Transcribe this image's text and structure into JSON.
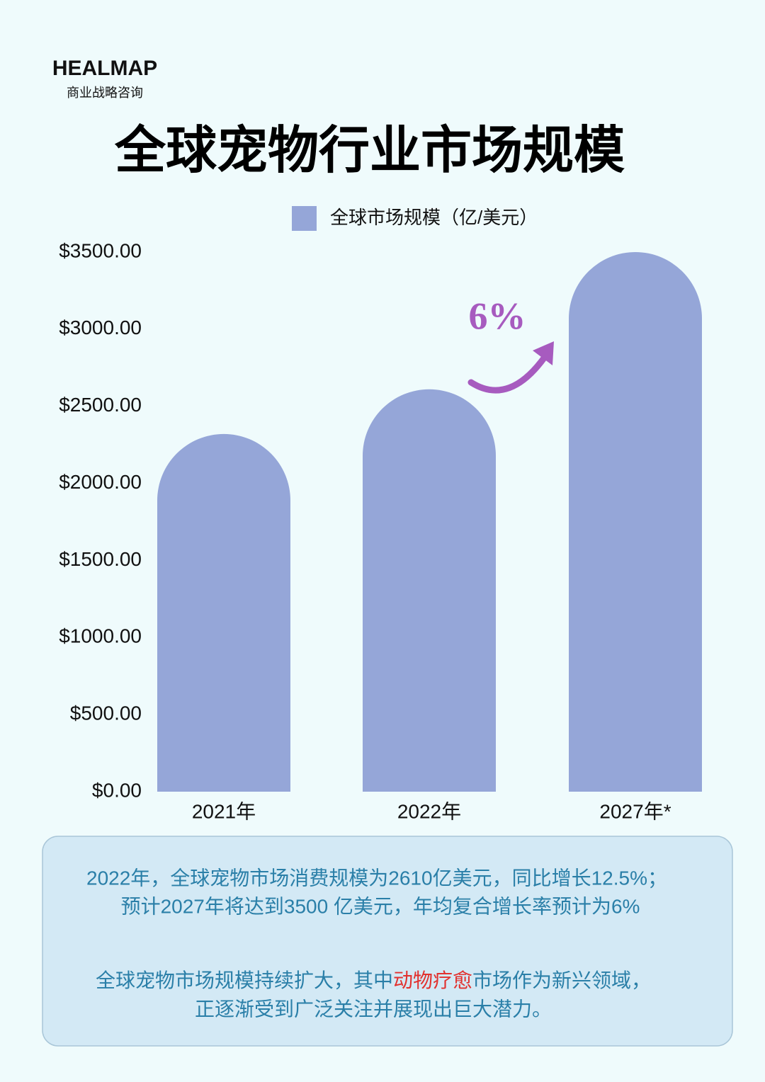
{
  "brand": {
    "name": "HEALMAP",
    "tagline": "商业战略咨询"
  },
  "chart_data": {
    "type": "bar",
    "title": "全球宠物行业市场规模",
    "categories": [
      "2021年",
      "2022年",
      "2027年*"
    ],
    "series": [
      {
        "name": "全球市场规模（亿/美元）",
        "color": "#95a6d8",
        "values": [
          2320,
          2610,
          3500
        ]
      }
    ],
    "ylim": [
      0,
      3500
    ],
    "yticks": [
      {
        "value": 0,
        "label": "$0.00"
      },
      {
        "value": 500,
        "label": "$500.00"
      },
      {
        "value": 1000,
        "label": "$1000.00"
      },
      {
        "value": 1500,
        "label": "$1500.00"
      },
      {
        "value": 2000,
        "label": "$2000.00"
      },
      {
        "value": 2500,
        "label": "$2500.00"
      },
      {
        "value": 3000,
        "label": "$3000.00"
      },
      {
        "value": 3500,
        "label": "$3500.00"
      }
    ],
    "annotation": "6%",
    "legend": "top"
  },
  "summary": {
    "line1": "2022年，全球宠物市场消费规模为2610亿美元，同比增长12.5%；",
    "line2": "预计2027年将达到3500 亿美元，年均复合增长率预计为6%",
    "line3": [
      "全球宠物市场规模持续扩大，其中",
      "动物疗愈",
      "市场作为新兴领域，"
    ],
    "line4": "正逐渐受到广泛关注并展现出巨大潜力。"
  }
}
